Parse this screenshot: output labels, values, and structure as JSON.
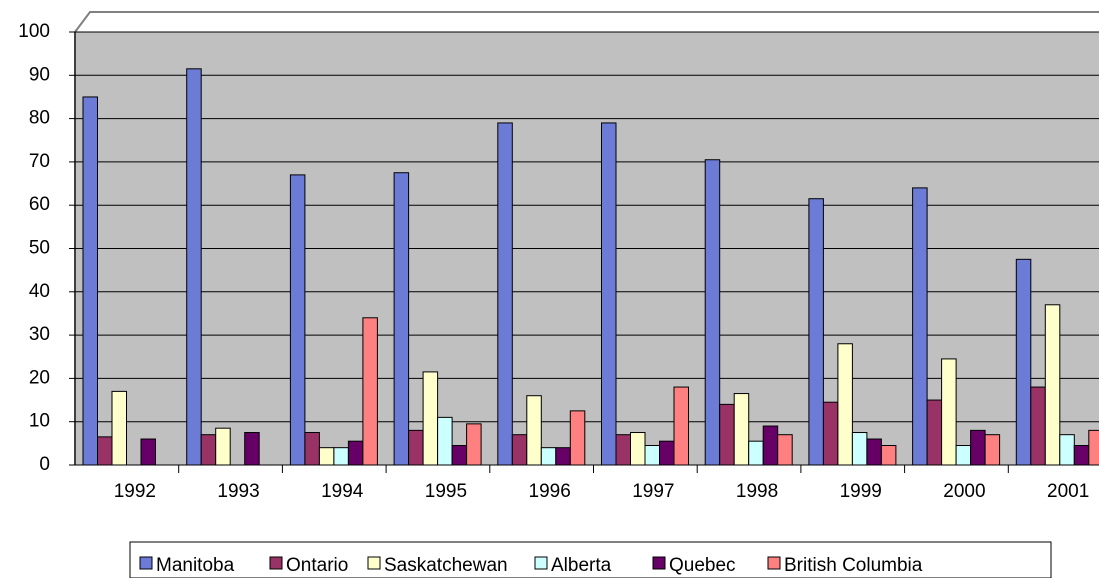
{
  "chart_data": {
    "type": "bar",
    "categories": [
      "1992",
      "1993",
      "1994",
      "1995",
      "1996",
      "1997",
      "1998",
      "1999",
      "2000",
      "2001"
    ],
    "series": [
      {
        "name": "Manitoba",
        "color": "#6b7bd6",
        "values": [
          85,
          91.5,
          67,
          67.5,
          79,
          79,
          70.5,
          61.5,
          64,
          47.5
        ]
      },
      {
        "name": "Ontario",
        "color": "#993366",
        "values": [
          6.5,
          7,
          7.5,
          8,
          7,
          7,
          14,
          14.5,
          15,
          18
        ]
      },
      {
        "name": "Saskatchewan",
        "color": "#ffffcc",
        "values": [
          17,
          8.5,
          4,
          21.5,
          16,
          7.5,
          16.5,
          28,
          24.5,
          37
        ]
      },
      {
        "name": "Alberta",
        "color": "#ccffff",
        "values": [
          null,
          null,
          4,
          11,
          4,
          4.5,
          5.5,
          7.5,
          4.5,
          7
        ]
      },
      {
        "name": "Quebec",
        "color": "#660066",
        "values": [
          6,
          7.5,
          5.5,
          4.5,
          4,
          5.5,
          9,
          6,
          8,
          4.5
        ]
      },
      {
        "name": "British Columbia",
        "color": "#ff8080",
        "values": [
          null,
          null,
          34,
          9.5,
          12.5,
          18,
          7,
          4.5,
          7,
          8
        ]
      }
    ],
    "ylim": [
      0,
      100
    ],
    "yticks": [
      0,
      10,
      20,
      30,
      40,
      50,
      60,
      70,
      80,
      90,
      100
    ],
    "grid": true
  }
}
